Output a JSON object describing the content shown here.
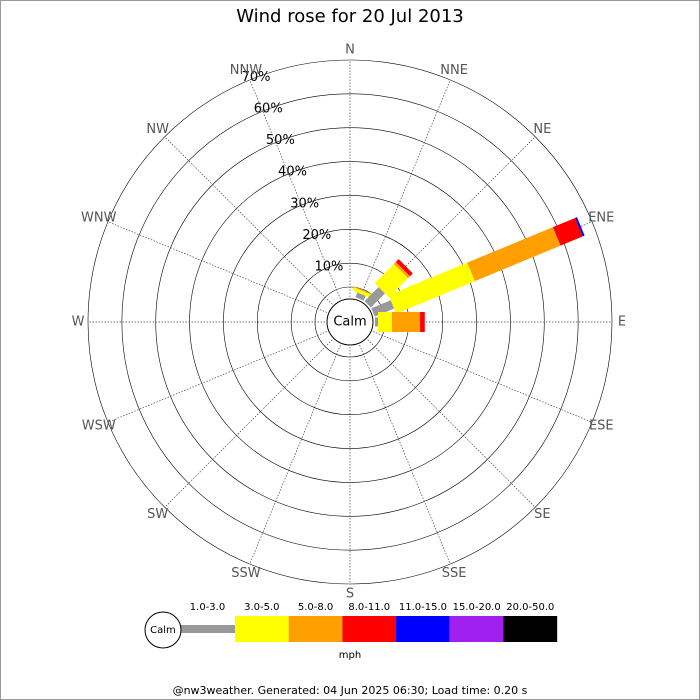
{
  "chart_data": {
    "type": "windrose",
    "title": "Wind rose for 20 Jul 2013",
    "directions": [
      "N",
      "NNE",
      "NE",
      "ENE",
      "E",
      "ESE",
      "SE",
      "SSE",
      "S",
      "SSW",
      "SW",
      "WSW",
      "W",
      "WNW",
      "NW",
      "NNW"
    ],
    "calm_label": "Calm",
    "rlim": [
      0,
      70
    ],
    "rticks": [
      {
        "value": 10,
        "label": "10%"
      },
      {
        "value": 20,
        "label": "20%"
      },
      {
        "value": 30,
        "label": "30%"
      },
      {
        "value": 40,
        "label": "40%"
      },
      {
        "value": 50,
        "label": "50%"
      },
      {
        "value": 60,
        "label": "60%"
      },
      {
        "value": 70,
        "label": "70%"
      }
    ],
    "series": [
      {
        "name": "1.0-3.0",
        "color": "#999999",
        "values": [
          0,
          1.5,
          5.9,
          6.2,
          0.9,
          0,
          0,
          0,
          0,
          0,
          0,
          0,
          0,
          0,
          0,
          0
        ]
      },
      {
        "name": "3.0-5.0",
        "color": "#ffff00",
        "values": [
          0,
          1,
          8,
          25.1,
          4.1,
          0,
          0,
          0,
          0,
          0,
          0,
          0,
          0,
          0,
          0,
          0
        ]
      },
      {
        "name": "5.0-8.0",
        "color": "#ffa000",
        "values": [
          0,
          0.3,
          0.8,
          27.4,
          8.3,
          0,
          0,
          0,
          0,
          0,
          0,
          0,
          0,
          0,
          0,
          0
        ]
      },
      {
        "name": "8.0-11.0",
        "color": "#ff0000",
        "values": [
          0,
          0,
          1.2,
          7.1,
          1.4,
          0,
          0,
          0,
          0,
          0,
          0,
          0,
          0,
          0,
          0,
          0
        ]
      },
      {
        "name": "11.0-15.0",
        "color": "#0000ff",
        "values": [
          0,
          0,
          0,
          0.6,
          0,
          0,
          0,
          0,
          0,
          0,
          0,
          0,
          0,
          0,
          0,
          0
        ]
      },
      {
        "name": "15.0-20.0",
        "color": "#a020f0",
        "values": [
          0,
          0,
          0,
          0,
          0,
          0,
          0,
          0,
          0,
          0,
          0,
          0,
          0,
          0,
          0,
          0
        ]
      },
      {
        "name": "20.0-50.0",
        "color": "#000000",
        "values": [
          0,
          0,
          0,
          0,
          0,
          0,
          0,
          0,
          0,
          0,
          0,
          0,
          0,
          0,
          0,
          0
        ]
      }
    ],
    "unit": "mph",
    "footer": "@nw3weather. Generated: 04 Jun 2025 06:30; Load time: 0.20 s"
  }
}
